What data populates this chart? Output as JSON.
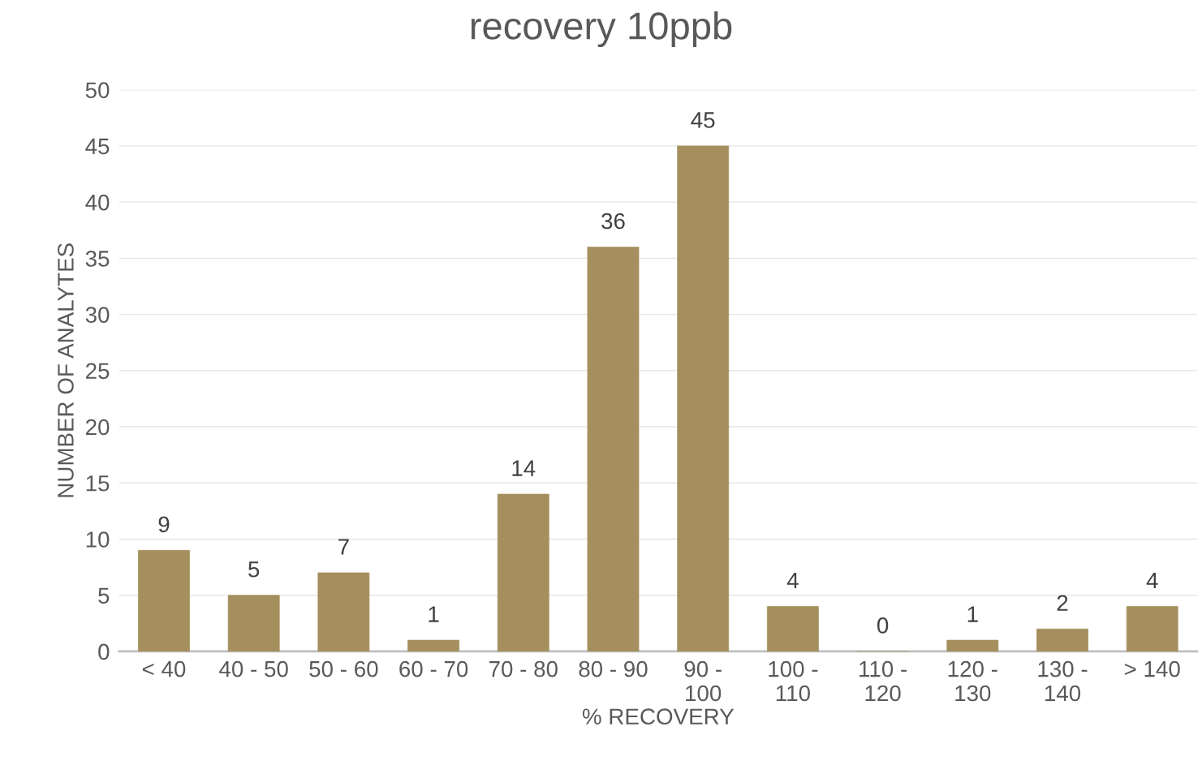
{
  "chart_data": {
    "type": "bar",
    "title": "recovery 10ppb",
    "xlabel": "% RECOVERY",
    "ylabel": "NUMBER OF ANALYTES",
    "categories": [
      "< 40",
      "40 - 50",
      "50 - 60",
      "60 - 70",
      "70 - 80",
      "80 - 90",
      "90 -\n100",
      "100 -\n110",
      "110 -\n120",
      "120 -\n130",
      "130 -\n140",
      "> 140"
    ],
    "values": [
      9,
      5,
      7,
      1,
      14,
      36,
      45,
      4,
      0,
      1,
      2,
      4
    ],
    "color": "#a58f5e",
    "ylim": [
      0,
      50
    ],
    "yticks": [
      0,
      5,
      10,
      15,
      20,
      25,
      30,
      35,
      40,
      45,
      50
    ],
    "grid": "y",
    "data_labels": true
  }
}
